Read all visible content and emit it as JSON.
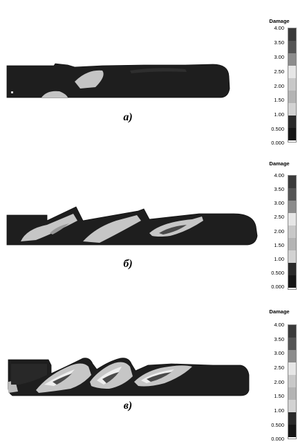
{
  "legend": {
    "title": "Damage",
    "labels": [
      "4.00",
      "3.50",
      "3.00",
      "2.50",
      "2.00",
      "1.50",
      "1.00",
      "0.500",
      "0.000"
    ],
    "colors": [
      "#3a3a3a",
      "#555555",
      "#8c8c8c",
      "#e6e6e6",
      "#c8c8c8",
      "#b4b4b4",
      "#d2d2d2",
      "#2a2a2a",
      "#161616"
    ]
  },
  "panels": [
    {
      "id": "a",
      "caption": "а)"
    },
    {
      "id": "b",
      "caption": "б)"
    },
    {
      "id": "c",
      "caption": "в)"
    }
  ]
}
